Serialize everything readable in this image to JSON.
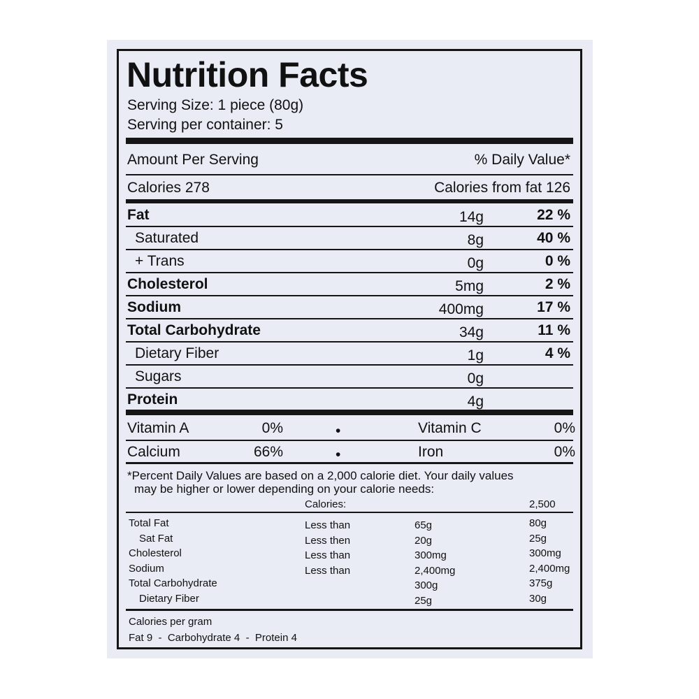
{
  "title": "Nutrition Facts",
  "serving_size": "Serving Size: 1 piece (80g)",
  "servings_per_container": "Serving per container: 5",
  "amount_per_serving": "Amount Per Serving",
  "daily_value_header": "% Daily Value*",
  "calories": "Calories 278",
  "calories_from_fat": "Calories from fat 126",
  "nutrients": [
    {
      "name": "Fat",
      "amount": "14g",
      "dv": "22 %",
      "bold": true,
      "indent": false
    },
    {
      "name": "Saturated",
      "amount": "8g",
      "dv": "40 %",
      "bold": false,
      "indent": true
    },
    {
      "name": "+ Trans",
      "amount": "0g",
      "dv": "0 %",
      "bold": false,
      "indent": true
    },
    {
      "name": "Cholesterol",
      "amount": "5mg",
      "dv": "2 %",
      "bold": true,
      "indent": false
    },
    {
      "name": "Sodium",
      "amount": "400mg",
      "dv": "17 %",
      "bold": true,
      "indent": false
    },
    {
      "name": "Total Carbohydrate",
      "amount": "34g",
      "dv": "11 %",
      "bold": true,
      "indent": false
    },
    {
      "name": "Dietary Fiber",
      "amount": "1g",
      "dv": "4 %",
      "bold": false,
      "indent": true
    },
    {
      "name": "Sugars",
      "amount": "0g",
      "dv": "",
      "bold": false,
      "indent": true
    },
    {
      "name": "Protein",
      "amount": "4g",
      "dv": "",
      "bold": true,
      "indent": false
    }
  ],
  "vitamins": [
    {
      "left_name": "Vitamin A",
      "left_value": "0%",
      "bullet": "•",
      "right_name": "Vitamin C",
      "right_value": "0%"
    },
    {
      "left_name": "Calcium",
      "left_value": "66%",
      "bullet": "•",
      "right_name": "Iron",
      "right_value": "0%"
    }
  ],
  "footnote_line1": "*Percent Daily Values are based on a 2,000 calorie diet. Your daily values",
  "footnote_line2": "may be higher or lower depending on your calorie needs:",
  "daily_table": {
    "calories_label": "Calories:",
    "calories_2500": "2,500",
    "rows": [
      {
        "name": "Total Fat",
        "qualifier": "Less than",
        "v2000": "65g",
        "v2500": "80g",
        "indent": false
      },
      {
        "name": "Sat Fat",
        "qualifier": "Less then",
        "v2000": "20g",
        "v2500": "25g",
        "indent": true
      },
      {
        "name": "Cholesterol",
        "qualifier": "Less than",
        "v2000": "300mg",
        "v2500": "300mg",
        "indent": false
      },
      {
        "name": "Sodium",
        "qualifier": "Less than",
        "v2000": "2,400mg",
        "v2500": "2,400mg",
        "indent": false
      },
      {
        "name": "Total Carbohydrate",
        "qualifier": "",
        "v2000": "300g",
        "v2500": "375g",
        "indent": false
      },
      {
        "name": "Dietary Fiber",
        "qualifier": "",
        "v2000": "25g",
        "v2500": "30g",
        "indent": true
      }
    ]
  },
  "calories_per_gram_label": "Calories per gram",
  "calories_per_gram_values": "Fat 9  -  Carbohydrate 4  -  Protein 4",
  "colors": {
    "ink": "#151515",
    "label_background": "#e9ebf5"
  }
}
